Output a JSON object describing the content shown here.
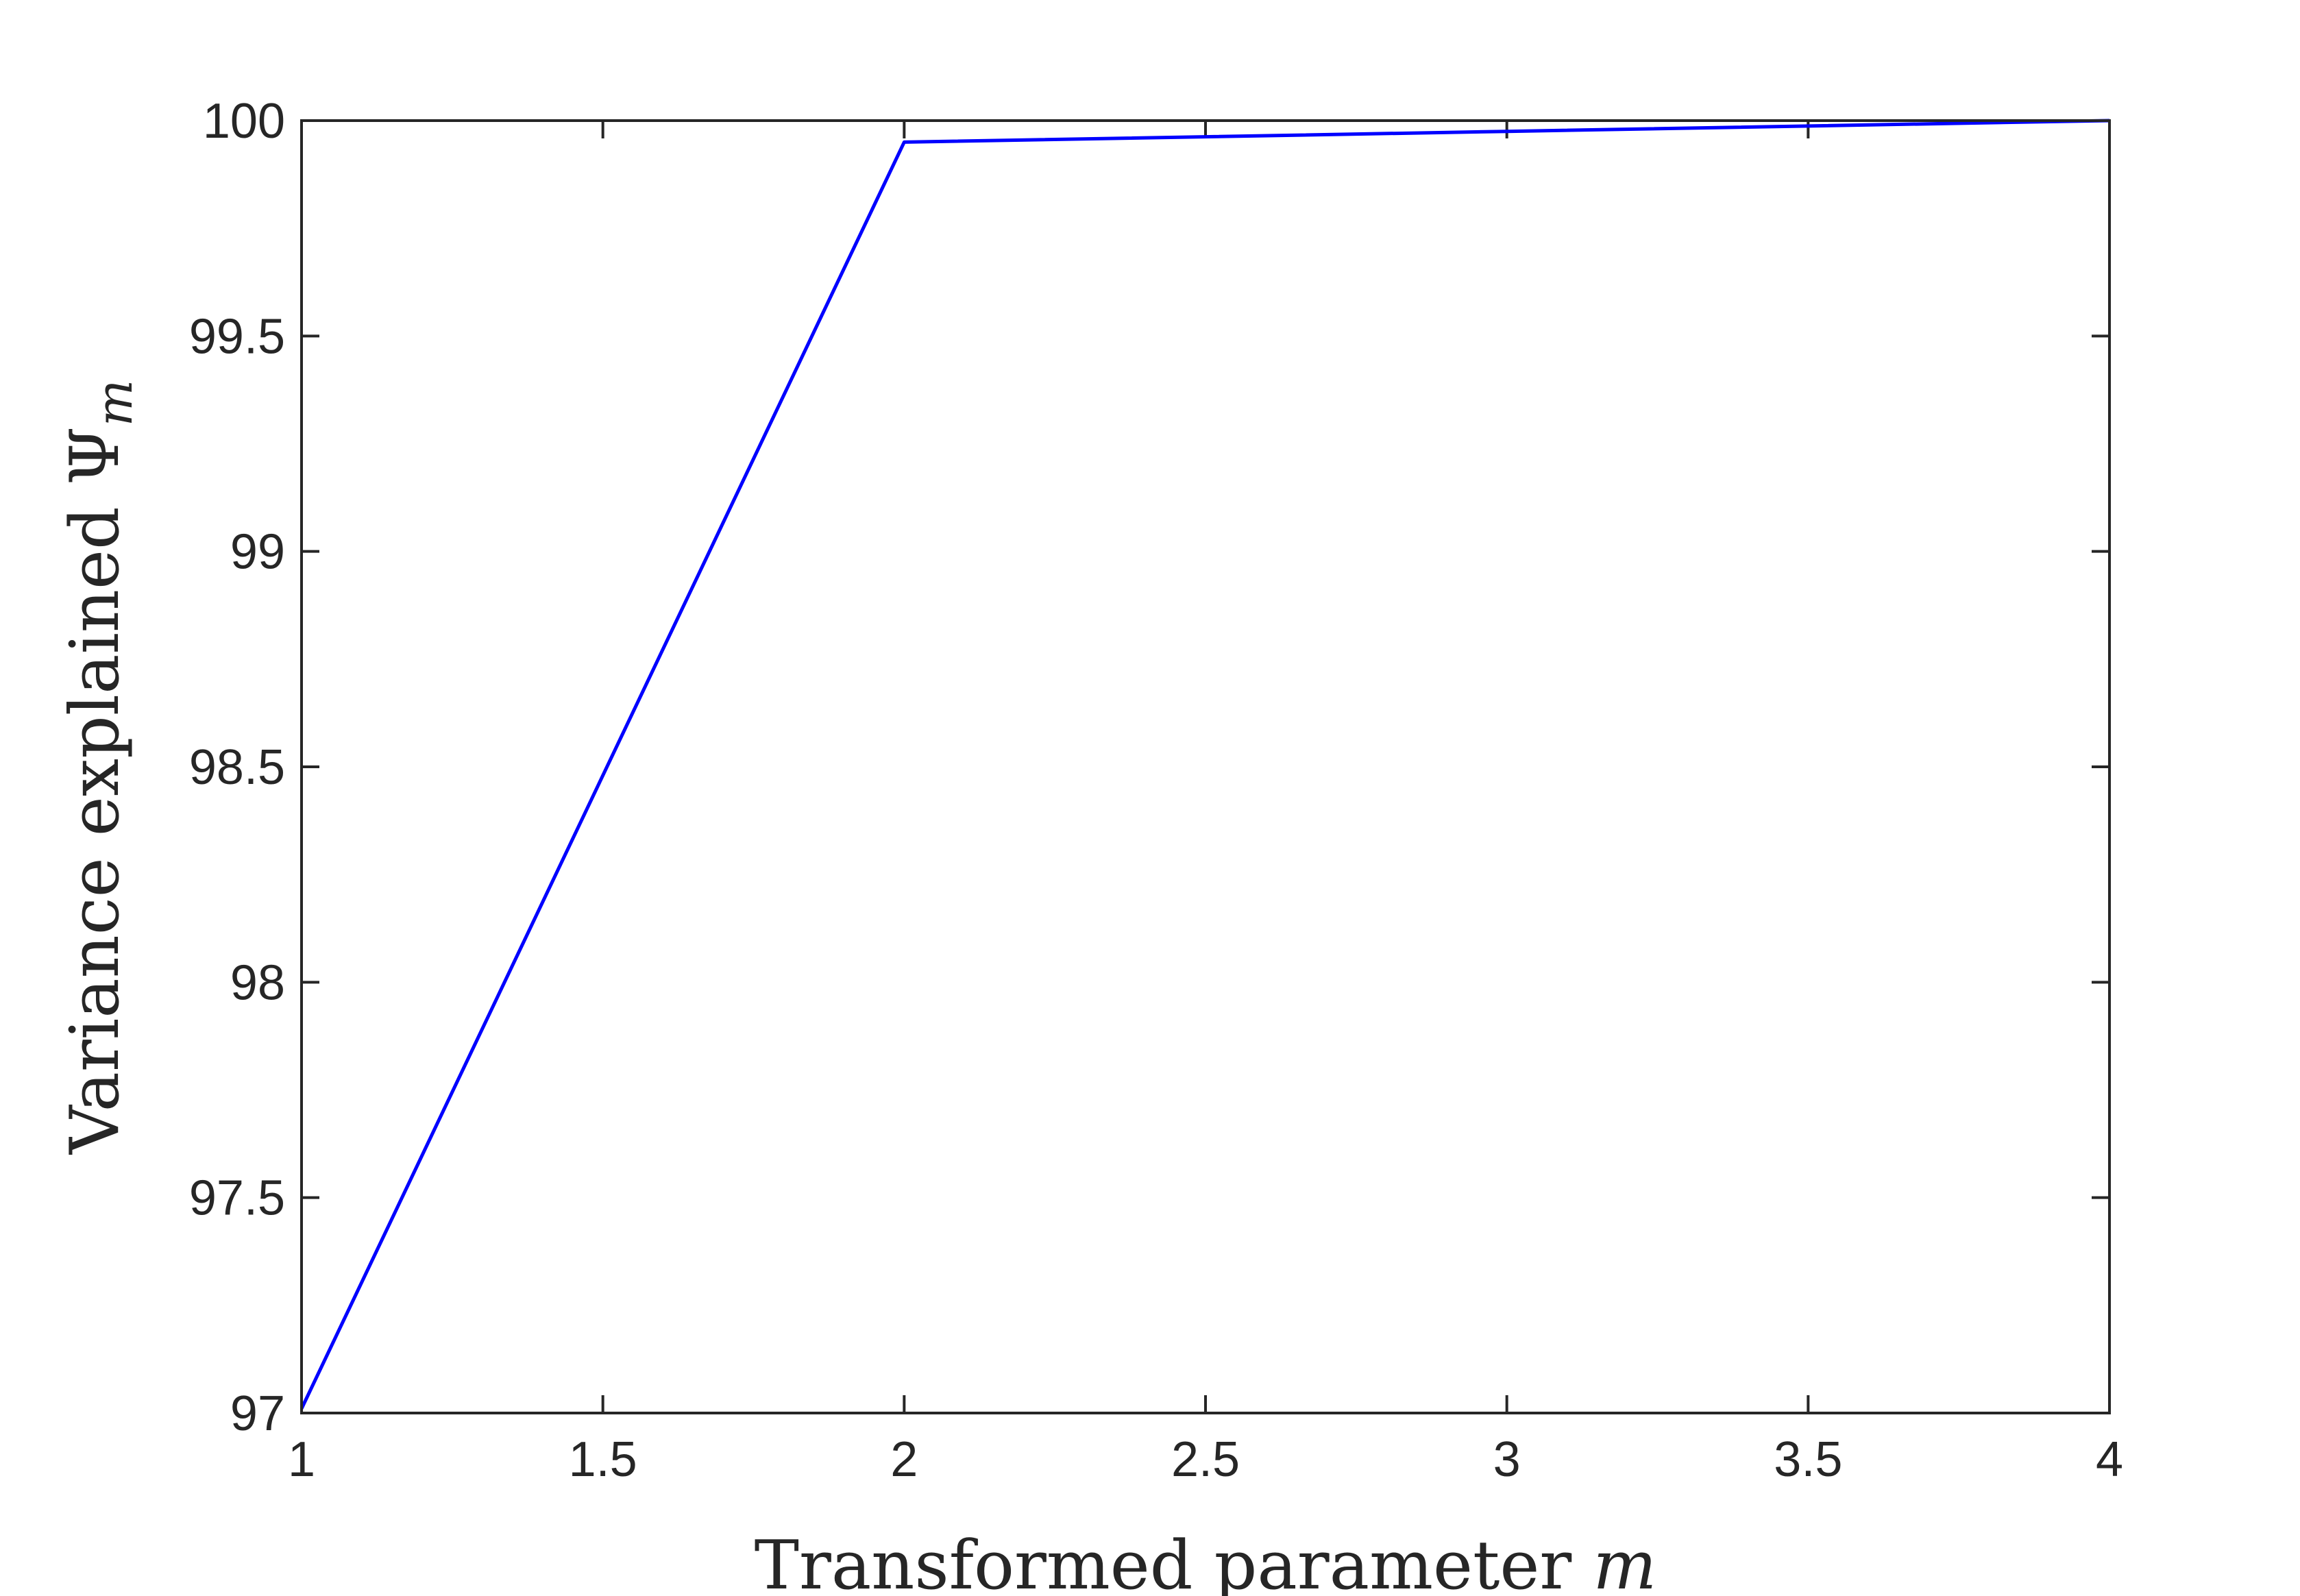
{
  "chart_data": {
    "type": "line",
    "xlabel": {
      "text": "Transformed parameter ",
      "math": "m"
    },
    "ylabel": {
      "text": "Variance explained ",
      "symbol": "Ψ",
      "sub": "m"
    },
    "xlim": [
      1,
      4
    ],
    "ylim": [
      97,
      100
    ],
    "xticks": [
      1,
      1.5,
      2,
      2.5,
      3,
      3.5,
      4
    ],
    "xtick_labels": [
      "1",
      "1.5",
      "2",
      "2.5",
      "3",
      "3.5",
      "4"
    ],
    "yticks": [
      97,
      97.5,
      98,
      98.5,
      99,
      99.5,
      100
    ],
    "ytick_labels": [
      "97",
      "97.5",
      "98",
      "98.5",
      "99",
      "99.5",
      "100"
    ],
    "grid": false,
    "legend": "none",
    "series": [
      {
        "x": [
          1,
          2,
          3,
          4
        ],
        "y": [
          97.01,
          99.95,
          99.975,
          100.0
        ],
        "color": "#0000ff"
      }
    ]
  }
}
